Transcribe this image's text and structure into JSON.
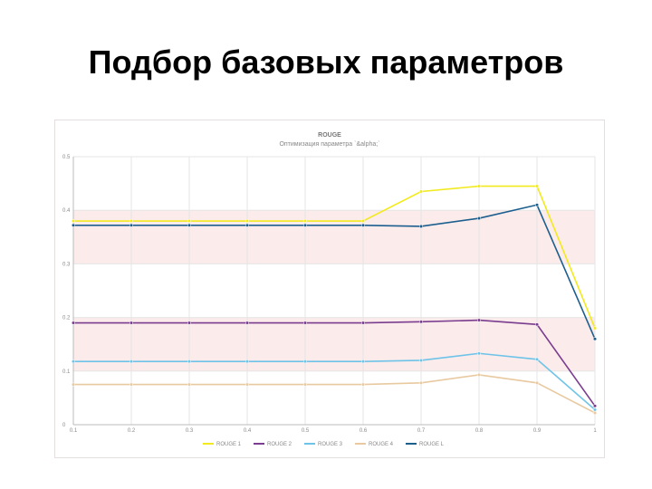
{
  "slide": {
    "title": "Подбор базовых параметров"
  },
  "chart_data": {
    "type": "line",
    "title": "ROUGE",
    "subtitle": "Оптимизация параметра `&alpha;`",
    "x": [
      "0.1",
      "0.2",
      "0.3",
      "0.4",
      "0.5",
      "0.6",
      "0.7",
      "0.8",
      "0.9",
      "1"
    ],
    "ylim": [
      0,
      0.5
    ],
    "yticks": [
      "0",
      "0.1",
      "0.2",
      "0.3",
      "0.4",
      "0.5"
    ],
    "grid": true,
    "legend_position": "bottom",
    "series": [
      {
        "name": "ROUGE 1",
        "color": "#f2ea1e",
        "values": [
          0.38,
          0.38,
          0.38,
          0.38,
          0.38,
          0.38,
          0.435,
          0.445,
          0.445,
          0.18
        ]
      },
      {
        "name": "ROUGE 2",
        "color": "#7a3d8f",
        "values": [
          0.19,
          0.19,
          0.19,
          0.19,
          0.19,
          0.19,
          0.192,
          0.195,
          0.187,
          0.035
        ]
      },
      {
        "name": "ROUGE 3",
        "color": "#6ec3e8",
        "values": [
          0.118,
          0.118,
          0.118,
          0.118,
          0.118,
          0.118,
          0.12,
          0.133,
          0.122,
          0.028
        ]
      },
      {
        "name": "ROUGE 4",
        "color": "#e8c9a0",
        "values": [
          0.075,
          0.075,
          0.075,
          0.075,
          0.075,
          0.075,
          0.078,
          0.093,
          0.078,
          0.022
        ]
      },
      {
        "name": "ROUGE L",
        "color": "#1c5f8f",
        "values": [
          0.372,
          0.372,
          0.372,
          0.372,
          0.372,
          0.372,
          0.37,
          0.385,
          0.41,
          0.16
        ]
      }
    ]
  }
}
